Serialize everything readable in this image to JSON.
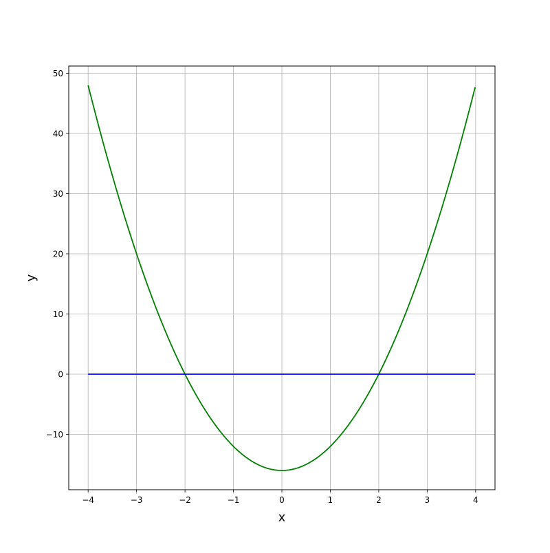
{
  "chart_data": {
    "type": "line",
    "title": "",
    "xlabel": "x",
    "ylabel": "y",
    "xlim": [
      -4.4,
      4.4
    ],
    "ylim": [
      -19.2,
      51.2
    ],
    "grid": true,
    "xticks": [
      -4,
      -3,
      -2,
      -1,
      0,
      1,
      2,
      3,
      4
    ],
    "xtick_labels": [
      "−4",
      "−3",
      "−2",
      "−1",
      "0",
      "1",
      "2",
      "3",
      "4"
    ],
    "yticks": [
      -10,
      0,
      10,
      20,
      30,
      40,
      50
    ],
    "ytick_labels": [
      "−10",
      "0",
      "10",
      "20",
      "30",
      "40",
      "50"
    ],
    "series": [
      {
        "color": "#008000",
        "x": [
          -4,
          -3.75,
          -3.5,
          -3.25,
          -3,
          -2.75,
          -2.5,
          -2.25,
          -2,
          -1.75,
          -1.5,
          -1.25,
          -1,
          -0.75,
          -0.5,
          -0.25,
          0,
          0.25,
          0.5,
          0.75,
          1,
          1.25,
          1.5,
          1.75,
          2,
          2.25,
          2.5,
          2.75,
          3,
          3.25,
          3.5,
          3.75,
          3.99
        ],
        "y": [
          48,
          40.25,
          33,
          26.25,
          20,
          14.25,
          9,
          4.25,
          0,
          -3.75,
          -7,
          -9.75,
          -12,
          -13.75,
          -15,
          -15.75,
          -16,
          -15.75,
          -15,
          -13.75,
          -12,
          -9.75,
          -7,
          -3.75,
          0,
          4.25,
          9,
          14.25,
          20,
          26.25,
          33,
          40.25,
          47.68
        ]
      },
      {
        "color": "#0000ff",
        "x": [
          -4,
          3.99
        ],
        "y": [
          0,
          0
        ]
      }
    ]
  }
}
